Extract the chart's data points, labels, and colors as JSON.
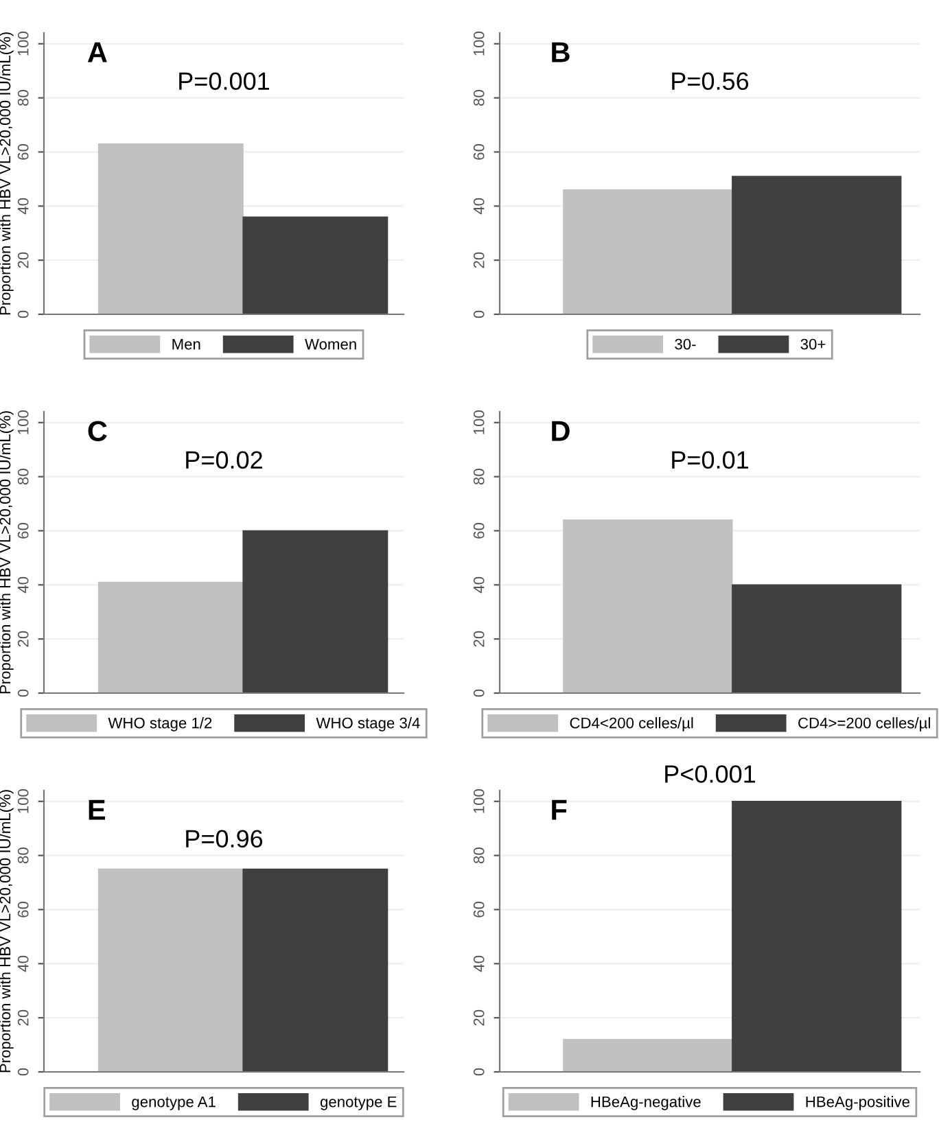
{
  "chart_data": [
    {
      "type": "bar",
      "title": "A",
      "ylabel": "Proportion with HBV VL>20,000 IU/mL(%)",
      "categories": [
        null
      ],
      "annotations": [
        "P=0.001"
      ],
      "ylim": [
        0,
        104
      ],
      "yticks": [
        0,
        20,
        40,
        60,
        80,
        100
      ],
      "grid": "y",
      "legend": "bottom",
      "tick_labels": "y",
      "series": [
        {
          "name": "Men",
          "color": "#c0c0c0",
          "values": [
            63
          ]
        },
        {
          "name": "Women",
          "color": "#404040",
          "values": [
            36
          ]
        }
      ]
    },
    {
      "type": "bar",
      "title": "B",
      "categories": [
        null
      ],
      "annotations": [
        "P=0.56"
      ],
      "ylim": [
        0,
        104
      ],
      "yticks": [
        0,
        20,
        40,
        60,
        80,
        100
      ],
      "grid": "y",
      "legend": "bottom",
      "tick_labels": "y",
      "series": [
        {
          "name": "30-",
          "color": "#c0c0c0",
          "values": [
            46
          ]
        },
        {
          "name": "30+",
          "color": "#404040",
          "values": [
            51
          ]
        }
      ]
    },
    {
      "type": "bar",
      "title": "C",
      "ylabel": "Proportion with HBV VL>20,000 IU/mL(%)",
      "categories": [
        null
      ],
      "annotations": [
        "P=0.02"
      ],
      "ylim": [
        0,
        104
      ],
      "yticks": [
        0,
        20,
        40,
        60,
        80,
        100
      ],
      "grid": "y",
      "legend": "bottom",
      "tick_labels": "y",
      "series": [
        {
          "name": "WHO stage 1/2",
          "color": "#c0c0c0",
          "values": [
            41
          ]
        },
        {
          "name": "WHO stage 3/4",
          "color": "#404040",
          "values": [
            60
          ]
        }
      ]
    },
    {
      "type": "bar",
      "title": "D",
      "categories": [
        null
      ],
      "annotations": [
        "P=0.01"
      ],
      "ylim": [
        0,
        104
      ],
      "yticks": [
        0,
        20,
        40,
        60,
        80,
        100
      ],
      "grid": "y",
      "legend": "bottom",
      "tick_labels": "y",
      "series": [
        {
          "name": "CD4<200 celles/µl",
          "color": "#c0c0c0",
          "values": [
            64
          ]
        },
        {
          "name": "CD4>=200 celles/µl",
          "color": "#404040",
          "values": [
            40
          ]
        }
      ]
    },
    {
      "type": "bar",
      "title": "E",
      "ylabel": "Proportion with HBV VL>20,000 IU/mL(%)",
      "categories": [
        null
      ],
      "annotations": [
        "P=0.96"
      ],
      "ylim": [
        0,
        104
      ],
      "yticks": [
        0,
        20,
        40,
        60,
        80,
        100
      ],
      "grid": "y",
      "legend": "bottom",
      "tick_labels": "y",
      "series": [
        {
          "name": "genotype A1",
          "color": "#c0c0c0",
          "values": [
            75
          ]
        },
        {
          "name": "genotype E",
          "color": "#404040",
          "values": [
            75
          ]
        }
      ]
    },
    {
      "type": "bar",
      "title": "F",
      "categories": [
        null
      ],
      "annotations": [
        "P<0.001"
      ],
      "ylim": [
        0,
        104
      ],
      "yticks": [
        0,
        20,
        40,
        60,
        80,
        100
      ],
      "grid": "y",
      "legend": "bottom",
      "tick_labels": "y",
      "series": [
        {
          "name": "HBeAg-negative",
          "color": "#c0c0c0",
          "values": [
            12
          ]
        },
        {
          "name": "HBeAg-positive",
          "color": "#404040",
          "values": [
            100
          ]
        }
      ]
    }
  ]
}
